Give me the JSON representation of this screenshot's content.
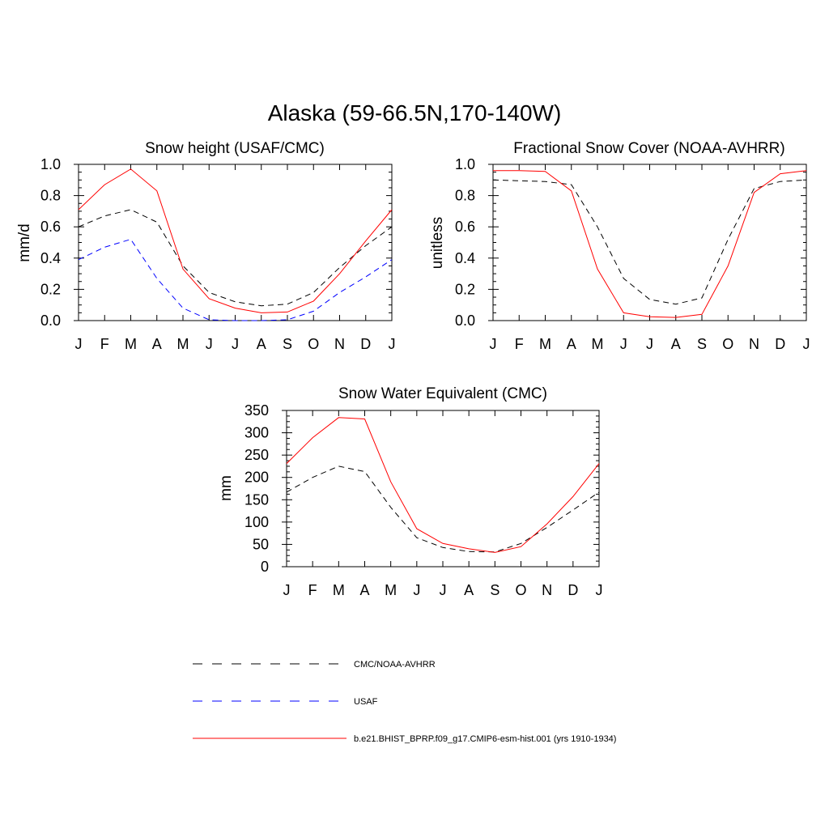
{
  "title": "Alaska (59-66.5N,170-140W)",
  "legend": [
    {
      "label": "CMC/NOAA-AVHRR",
      "color": "#000000",
      "dash": "dashed"
    },
    {
      "label": "USAF",
      "color": "#0000ff",
      "dash": "dashed"
    },
    {
      "label": "b.e21.BHIST_BPRP.f09_g17.CMIP6-esm-hist.001 (yrs 1910-1934)",
      "color": "#ff0000",
      "dash": "solid"
    }
  ],
  "chart_data": [
    {
      "type": "line",
      "title": "Snow height (USAF/CMC)",
      "xlabel": "",
      "ylabel": "mm/d",
      "categories": [
        "J",
        "F",
        "M",
        "A",
        "M",
        "J",
        "J",
        "A",
        "S",
        "O",
        "N",
        "D",
        "J"
      ],
      "ylim": [
        0,
        1.0
      ],
      "yticks": [
        "0.0",
        "0.2",
        "0.4",
        "0.6",
        "0.8",
        "1.0"
      ],
      "series": [
        {
          "name": "CMC/NOAA-AVHRR",
          "color": "#000000",
          "dash": "dashed",
          "values": [
            0.6,
            0.67,
            0.71,
            0.63,
            0.35,
            0.18,
            0.12,
            0.095,
            0.105,
            0.18,
            0.34,
            0.48,
            0.6
          ]
        },
        {
          "name": "USAF",
          "color": "#0000ff",
          "dash": "dashed",
          "values": [
            0.39,
            0.47,
            0.52,
            0.27,
            0.08,
            0.005,
            0.0,
            0.0,
            0.005,
            0.06,
            0.18,
            0.28,
            0.39
          ]
        },
        {
          "name": "b.e21.BHIST_BPRP.f09_g17.CMIP6-esm-hist.001 (yrs 1910-1934)",
          "color": "#ff0000",
          "dash": "solid",
          "values": [
            0.71,
            0.87,
            0.97,
            0.83,
            0.33,
            0.14,
            0.08,
            0.05,
            0.055,
            0.125,
            0.3,
            0.51,
            0.71
          ]
        }
      ]
    },
    {
      "type": "line",
      "title": "Fractional Snow Cover (NOAA-AVHRR)",
      "xlabel": "",
      "ylabel": "unitless",
      "categories": [
        "J",
        "F",
        "M",
        "A",
        "M",
        "J",
        "J",
        "A",
        "S",
        "O",
        "N",
        "D",
        "J"
      ],
      "ylim": [
        0,
        1.0
      ],
      "yticks": [
        "0.0",
        "0.2",
        "0.4",
        "0.6",
        "0.8",
        "1.0"
      ],
      "series": [
        {
          "name": "CMC/NOAA-AVHRR",
          "color": "#000000",
          "dash": "dashed",
          "values": [
            0.9,
            0.895,
            0.89,
            0.87,
            0.6,
            0.27,
            0.135,
            0.105,
            0.145,
            0.52,
            0.845,
            0.89,
            0.9
          ]
        },
        {
          "name": "b.e21.BHIST_BPRP.f09_g17.CMIP6-esm-hist.001 (yrs 1910-1934)",
          "color": "#ff0000",
          "dash": "solid",
          "values": [
            0.96,
            0.96,
            0.955,
            0.83,
            0.33,
            0.05,
            0.025,
            0.02,
            0.04,
            0.35,
            0.82,
            0.94,
            0.96
          ]
        }
      ]
    },
    {
      "type": "line",
      "title": "Snow Water Equivalent (CMC)",
      "xlabel": "",
      "ylabel": "mm",
      "categories": [
        "J",
        "F",
        "M",
        "A",
        "M",
        "J",
        "J",
        "A",
        "S",
        "O",
        "N",
        "D",
        "J"
      ],
      "ylim": [
        0,
        350
      ],
      "yticks": [
        "0",
        "50",
        "100",
        "150",
        "200",
        "250",
        "300",
        "350"
      ],
      "series": [
        {
          "name": "CMC/NOAA-AVHRR",
          "color": "#000000",
          "dash": "dashed",
          "values": [
            167,
            200,
            225,
            213,
            133,
            65,
            43,
            34,
            33,
            52,
            88,
            127,
            167
          ]
        },
        {
          "name": "b.e21.BHIST_BPRP.f09_g17.CMIP6-esm-hist.001 (yrs 1910-1934)",
          "color": "#ff0000",
          "dash": "solid",
          "values": [
            231,
            289,
            334,
            331,
            190,
            85,
            52,
            40,
            32,
            45,
            96,
            157,
            231
          ]
        }
      ]
    }
  ]
}
